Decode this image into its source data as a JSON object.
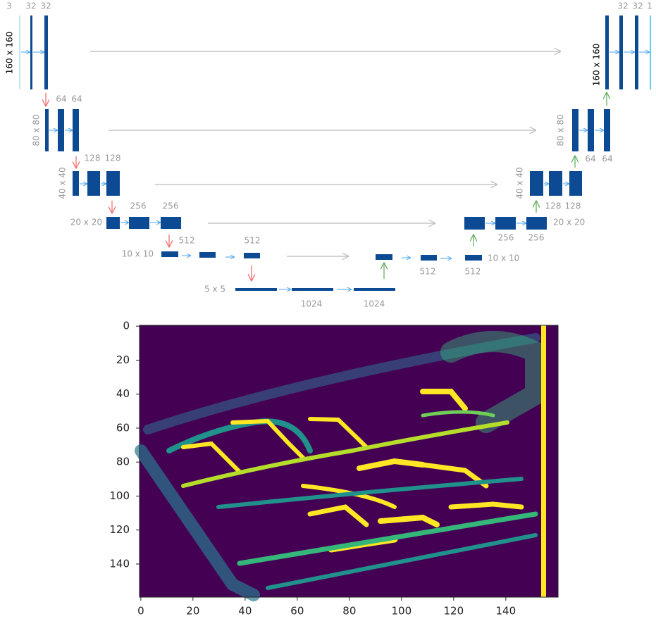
{
  "encoder": [
    {
      "size": "160 x 160",
      "channels": [
        "3",
        "32",
        "32"
      ]
    },
    {
      "size": "80 x 80",
      "channels": [
        "64",
        "64"
      ]
    },
    {
      "size": "40 x 40",
      "channels": [
        "128",
        "128"
      ]
    },
    {
      "size": "20 x 20",
      "channels": [
        "256",
        "256"
      ]
    },
    {
      "size": "10 x 10",
      "channels": [
        "512",
        "512"
      ]
    }
  ],
  "bottleneck": {
    "size": "5 x 5",
    "channels": [
      "1024",
      "1024"
    ]
  },
  "decoder": [
    {
      "size": "10 x 10",
      "channels": [
        "512",
        "512"
      ]
    },
    {
      "size": "20 x 20",
      "channels": [
        "256",
        "256"
      ]
    },
    {
      "size": "40 x 40",
      "channels": [
        "128",
        "128"
      ]
    },
    {
      "size": "80 x 80",
      "channels": [
        "64",
        "64"
      ]
    },
    {
      "size": "160 x 160",
      "channels": [
        "32",
        "32",
        "1"
      ]
    }
  ],
  "chart_data": {
    "type": "image",
    "xlim": [
      -0.5,
      159.5
    ],
    "ylim": [
      159.5,
      -0.5
    ],
    "xticks": [
      0,
      20,
      40,
      60,
      80,
      100,
      120,
      140
    ],
    "yticks": [
      0,
      20,
      40,
      60,
      80,
      100,
      120,
      140
    ]
  }
}
